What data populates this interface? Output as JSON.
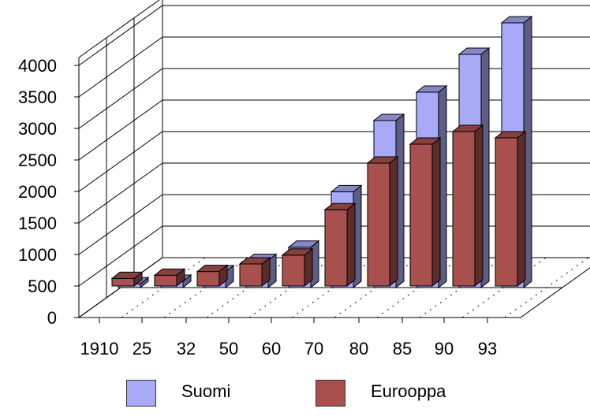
{
  "chart_data": {
    "type": "bar",
    "view": "3d-clustered-depth",
    "categories": [
      "1910",
      "25",
      "32",
      "50",
      "60",
      "70",
      "80",
      "85",
      "90",
      "93"
    ],
    "series": [
      {
        "name": "Suomi",
        "color": "#a8aaf8",
        "values": [
          60,
          100,
          250,
          430,
          640,
          1520,
          2650,
          3100,
          3700,
          4200
        ]
      },
      {
        "name": "Eurooppa",
        "color": "#a8504e",
        "values": [
          120,
          170,
          230,
          350,
          490,
          1210,
          1950,
          2250,
          2450,
          2350
        ]
      }
    ],
    "ylim": [
      0,
      4000
    ],
    "yticks": [
      0,
      500,
      1000,
      1500,
      2000,
      2500,
      3000,
      3500,
      4000
    ],
    "grid": true,
    "legend_position": "bottom"
  },
  "legend": {
    "items": [
      {
        "label": "Suomi",
        "color": "#a8aaf8"
      },
      {
        "label": "Eurooppa",
        "color": "#a8504e"
      }
    ]
  }
}
